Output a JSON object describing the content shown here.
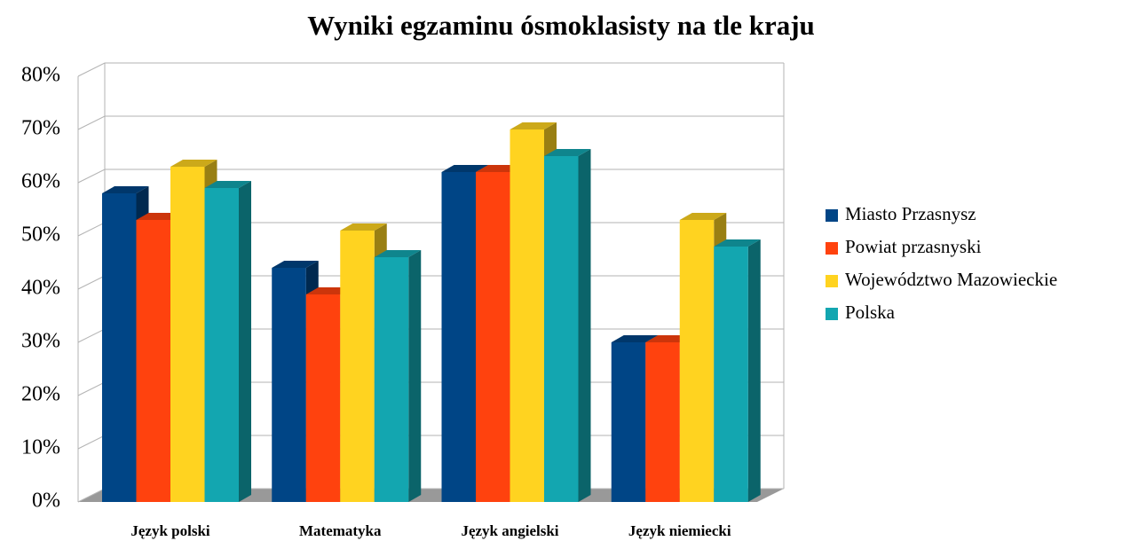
{
  "chart_data": {
    "type": "bar3d",
    "title": "Wyniki egzaminu ósmoklasisty na tle kraju",
    "categories": [
      "Język polski",
      "Matematyka",
      "Język angielski",
      "Język niemiecki"
    ],
    "series": [
      {
        "name": "Miasto Przasnysz",
        "color": "#004586",
        "values": [
          58,
          44,
          62,
          30
        ]
      },
      {
        "name": "Powiat przasnyski",
        "color": "#ff420e",
        "values": [
          53,
          39,
          62,
          30
        ]
      },
      {
        "name": "Województwo Mazowieckie",
        "color": "#ffd320",
        "values": [
          63,
          51,
          70,
          53
        ]
      },
      {
        "name": "Polska",
        "color": "#13a6b0",
        "values": [
          59,
          46,
          65,
          48
        ]
      }
    ],
    "ylim": [
      0,
      80
    ],
    "yticks": [
      {
        "value": 0,
        "label": "0%"
      },
      {
        "value": 10,
        "label": "10%"
      },
      {
        "value": 20,
        "label": "20%"
      },
      {
        "value": 30,
        "label": "30%"
      },
      {
        "value": 40,
        "label": "40%"
      },
      {
        "value": 50,
        "label": "50%"
      },
      {
        "value": 60,
        "label": "60%"
      },
      {
        "value": 70,
        "label": "70%"
      },
      {
        "value": 80,
        "label": "80%"
      }
    ],
    "grid": true,
    "legend": "right"
  }
}
